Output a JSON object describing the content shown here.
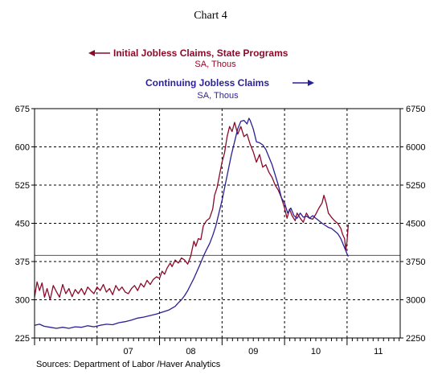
{
  "chart_data": {
    "type": "line",
    "title": "Chart 4",
    "source": "Sources:  Department of Labor /Haver Analytics",
    "colors": {
      "initial": "#8b0a2a",
      "continuing": "#2b1f96"
    },
    "x_axis": {
      "range": [
        2006.0,
        2011.85
      ],
      "year_labels": [
        {
          "x": 2007.5,
          "label": "07"
        },
        {
          "x": 2008.5,
          "label": "08"
        },
        {
          "x": 2009.5,
          "label": "09"
        },
        {
          "x": 2010.5,
          "label": "10"
        },
        {
          "x": 2011.5,
          "label": "11"
        }
      ],
      "year_boundaries": [
        2007,
        2008,
        2009,
        2010,
        2011
      ]
    },
    "left_axis": {
      "range": [
        225,
        675
      ],
      "ticks": [
        225,
        300,
        375,
        450,
        525,
        600,
        675
      ],
      "tick_labels": [
        "225",
        "300",
        "375",
        "450",
        "525",
        "600",
        "675"
      ]
    },
    "right_axis": {
      "range": [
        2250,
        6750
      ],
      "ticks": [
        2250,
        3000,
        3750,
        4500,
        5250,
        6000,
        6750
      ],
      "tick_labels": [
        "2250",
        "3000",
        "3750",
        "4500",
        "5250",
        "6000",
        "6750"
      ]
    },
    "reference_line_left": 387,
    "series": [
      {
        "name": "Initial Jobless Claims, State Programs",
        "units": "SA, Thous",
        "axis": "left",
        "arrow": "left",
        "points": [
          [
            2006.0,
            305
          ],
          [
            2006.04,
            335
          ],
          [
            2006.08,
            318
          ],
          [
            2006.12,
            333
          ],
          [
            2006.16,
            305
          ],
          [
            2006.2,
            322
          ],
          [
            2006.25,
            300
          ],
          [
            2006.3,
            328
          ],
          [
            2006.35,
            316
          ],
          [
            2006.4,
            305
          ],
          [
            2006.45,
            330
          ],
          [
            2006.5,
            312
          ],
          [
            2006.55,
            322
          ],
          [
            2006.6,
            306
          ],
          [
            2006.65,
            320
          ],
          [
            2006.7,
            312
          ],
          [
            2006.75,
            322
          ],
          [
            2006.8,
            310
          ],
          [
            2006.85,
            325
          ],
          [
            2006.9,
            318
          ],
          [
            2006.95,
            312
          ],
          [
            2007.0,
            325
          ],
          [
            2007.05,
            318
          ],
          [
            2007.1,
            330
          ],
          [
            2007.15,
            315
          ],
          [
            2007.2,
            322
          ],
          [
            2007.25,
            310
          ],
          [
            2007.3,
            328
          ],
          [
            2007.35,
            318
          ],
          [
            2007.4,
            325
          ],
          [
            2007.45,
            315
          ],
          [
            2007.5,
            312
          ],
          [
            2007.55,
            322
          ],
          [
            2007.6,
            328
          ],
          [
            2007.65,
            318
          ],
          [
            2007.7,
            332
          ],
          [
            2007.75,
            325
          ],
          [
            2007.8,
            338
          ],
          [
            2007.85,
            330
          ],
          [
            2007.9,
            340
          ],
          [
            2007.95,
            345
          ],
          [
            2008.0,
            342
          ],
          [
            2008.04,
            356
          ],
          [
            2008.08,
            350
          ],
          [
            2008.12,
            362
          ],
          [
            2008.17,
            372
          ],
          [
            2008.2,
            365
          ],
          [
            2008.25,
            378
          ],
          [
            2008.3,
            372
          ],
          [
            2008.35,
            382
          ],
          [
            2008.4,
            378
          ],
          [
            2008.45,
            370
          ],
          [
            2008.5,
            386
          ],
          [
            2008.55,
            415
          ],
          [
            2008.58,
            405
          ],
          [
            2008.62,
            420
          ],
          [
            2008.66,
            418
          ],
          [
            2008.7,
            445
          ],
          [
            2008.75,
            455
          ],
          [
            2008.8,
            460
          ],
          [
            2008.85,
            478
          ],
          [
            2008.88,
            505
          ],
          [
            2008.92,
            520
          ],
          [
            2008.96,
            545
          ],
          [
            2009.0,
            570
          ],
          [
            2009.04,
            588
          ],
          [
            2009.08,
            620
          ],
          [
            2009.12,
            640
          ],
          [
            2009.16,
            630
          ],
          [
            2009.2,
            648
          ],
          [
            2009.25,
            625
          ],
          [
            2009.3,
            640
          ],
          [
            2009.35,
            620
          ],
          [
            2009.4,
            625
          ],
          [
            2009.45,
            605
          ],
          [
            2009.5,
            590
          ],
          [
            2009.55,
            570
          ],
          [
            2009.6,
            585
          ],
          [
            2009.65,
            560
          ],
          [
            2009.7,
            565
          ],
          [
            2009.75,
            550
          ],
          [
            2009.8,
            540
          ],
          [
            2009.85,
            525
          ],
          [
            2009.9,
            515
          ],
          [
            2009.95,
            500
          ],
          [
            2010.0,
            480
          ],
          [
            2010.04,
            460
          ],
          [
            2010.08,
            478
          ],
          [
            2010.12,
            465
          ],
          [
            2010.17,
            455
          ],
          [
            2010.2,
            470
          ],
          [
            2010.25,
            460
          ],
          [
            2010.3,
            452
          ],
          [
            2010.35,
            470
          ],
          [
            2010.4,
            460
          ],
          [
            2010.45,
            458
          ],
          [
            2010.5,
            468
          ],
          [
            2010.55,
            480
          ],
          [
            2010.6,
            490
          ],
          [
            2010.63,
            505
          ],
          [
            2010.67,
            488
          ],
          [
            2010.7,
            470
          ],
          [
            2010.75,
            462
          ],
          [
            2010.8,
            455
          ],
          [
            2010.85,
            450
          ],
          [
            2010.9,
            440
          ],
          [
            2010.93,
            428
          ],
          [
            2010.96,
            420
          ],
          [
            2010.98,
            398
          ],
          [
            2011.0,
            415
          ],
          [
            2011.02,
            448
          ]
        ]
      },
      {
        "name": "Continuing Jobless Claims",
        "units": "SA, Thous",
        "axis": "right",
        "arrow": "right",
        "points": [
          [
            2006.0,
            2500
          ],
          [
            2006.08,
            2520
          ],
          [
            2006.15,
            2480
          ],
          [
            2006.25,
            2460
          ],
          [
            2006.35,
            2440
          ],
          [
            2006.45,
            2460
          ],
          [
            2006.55,
            2440
          ],
          [
            2006.65,
            2470
          ],
          [
            2006.75,
            2460
          ],
          [
            2006.85,
            2490
          ],
          [
            2006.95,
            2470
          ],
          [
            2007.05,
            2500
          ],
          [
            2007.15,
            2520
          ],
          [
            2007.25,
            2510
          ],
          [
            2007.35,
            2550
          ],
          [
            2007.45,
            2570
          ],
          [
            2007.55,
            2600
          ],
          [
            2007.65,
            2640
          ],
          [
            2007.75,
            2660
          ],
          [
            2007.85,
            2690
          ],
          [
            2007.95,
            2720
          ],
          [
            2008.05,
            2760
          ],
          [
            2008.15,
            2800
          ],
          [
            2008.25,
            2870
          ],
          [
            2008.3,
            2940
          ],
          [
            2008.35,
            3000
          ],
          [
            2008.4,
            3080
          ],
          [
            2008.45,
            3180
          ],
          [
            2008.5,
            3300
          ],
          [
            2008.55,
            3420
          ],
          [
            2008.6,
            3560
          ],
          [
            2008.65,
            3700
          ],
          [
            2008.7,
            3850
          ],
          [
            2008.75,
            3980
          ],
          [
            2008.8,
            4100
          ],
          [
            2008.85,
            4260
          ],
          [
            2008.9,
            4450
          ],
          [
            2008.95,
            4700
          ],
          [
            2009.0,
            4950
          ],
          [
            2009.05,
            5250
          ],
          [
            2009.1,
            5550
          ],
          [
            2009.15,
            5850
          ],
          [
            2009.2,
            6100
          ],
          [
            2009.25,
            6350
          ],
          [
            2009.3,
            6500
          ],
          [
            2009.35,
            6520
          ],
          [
            2009.4,
            6450
          ],
          [
            2009.43,
            6560
          ],
          [
            2009.45,
            6520
          ],
          [
            2009.5,
            6350
          ],
          [
            2009.55,
            6100
          ],
          [
            2009.6,
            6080
          ],
          [
            2009.65,
            6040
          ],
          [
            2009.7,
            5950
          ],
          [
            2009.75,
            5800
          ],
          [
            2009.8,
            5650
          ],
          [
            2009.85,
            5450
          ],
          [
            2009.9,
            5250
          ],
          [
            2009.95,
            5000
          ],
          [
            2010.0,
            4900
          ],
          [
            2010.05,
            4700
          ],
          [
            2010.1,
            4800
          ],
          [
            2010.15,
            4650
          ],
          [
            2010.2,
            4600
          ],
          [
            2010.25,
            4700
          ],
          [
            2010.3,
            4620
          ],
          [
            2010.35,
            4640
          ],
          [
            2010.4,
            4600
          ],
          [
            2010.45,
            4650
          ],
          [
            2010.5,
            4600
          ],
          [
            2010.55,
            4550
          ],
          [
            2010.6,
            4500
          ],
          [
            2010.65,
            4460
          ],
          [
            2010.7,
            4420
          ],
          [
            2010.75,
            4400
          ],
          [
            2010.8,
            4350
          ],
          [
            2010.85,
            4300
          ],
          [
            2010.9,
            4200
          ],
          [
            2010.95,
            4050
          ],
          [
            2011.0,
            3900
          ],
          [
            2011.02,
            3850
          ]
        ]
      }
    ]
  }
}
